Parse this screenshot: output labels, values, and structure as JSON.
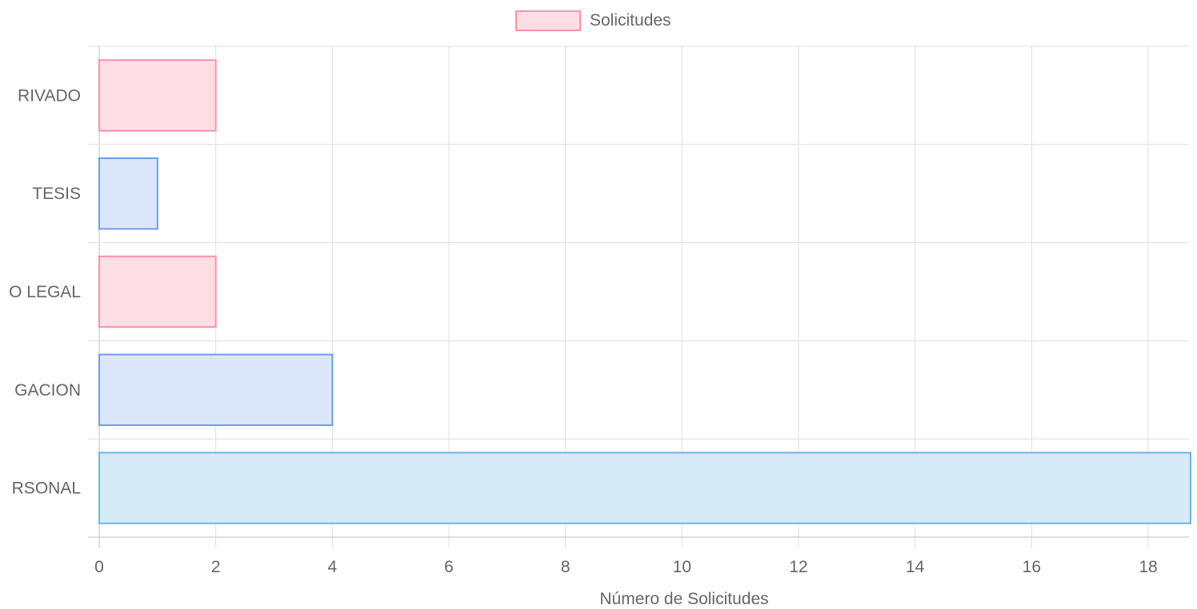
{
  "chart_data": {
    "type": "bar",
    "orientation": "horizontal",
    "legend": {
      "position": "top",
      "label": "Solicitudes",
      "colors": {
        "background": "#ffdfe5",
        "border": "#ff8fa7"
      }
    },
    "categories": [
      "PRIVADO",
      "TESIS",
      "O LEGAL",
      "GACION",
      "RSONAL"
    ],
    "visible_category_labels": [
      "RIVADO",
      "TESIS",
      "O LEGAL",
      "GACION",
      "RSONAL"
    ],
    "series": [
      {
        "name": "Solicitudes",
        "values": [
          2,
          1,
          2,
          4,
          19
        ]
      }
    ],
    "bar_colors": [
      {
        "background": "#ffdfe5",
        "border": "#ff8fa7"
      },
      {
        "background": "#dce7fb",
        "border": "#6f9cf2"
      },
      {
        "background": "#ffdfe5",
        "border": "#ff8fa7"
      },
      {
        "background": "#dce7fb",
        "border": "#6f9cf2"
      },
      {
        "background": "#d6eaf8",
        "border": "#6cb6e6"
      }
    ],
    "xlabel": "Número de Solicitudes",
    "ylabel": "",
    "xlim": [
      0,
      18.7
    ],
    "xticks": [
      0,
      2,
      4,
      6,
      8,
      10,
      12,
      14,
      16,
      18
    ],
    "grid": true
  }
}
